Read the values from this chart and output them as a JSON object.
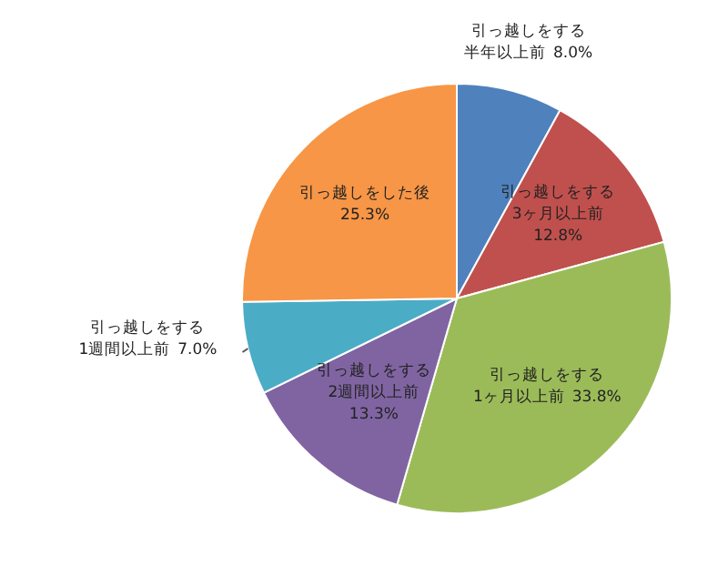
{
  "chart_data": {
    "type": "pie",
    "categories": [
      "引っ越しをする半年以上前",
      "引っ越しをする3ヶ月以上前",
      "引っ越しをする1ヶ月以上前",
      "引っ越しをする2週間以上前",
      "引っ越しをする1週間以上前",
      "引っ越しをした後"
    ],
    "values": [
      8.0,
      12.8,
      33.8,
      13.3,
      7.0,
      25.3
    ],
    "value_labels": [
      "8.0%",
      "12.8%",
      "33.8%",
      "13.3%",
      "7.0%",
      "25.3%"
    ],
    "colors": [
      "#4f81bd",
      "#c0504d",
      "#9bbb59",
      "#8064a2",
      "#4bacc6",
      "#f79646"
    ]
  }
}
